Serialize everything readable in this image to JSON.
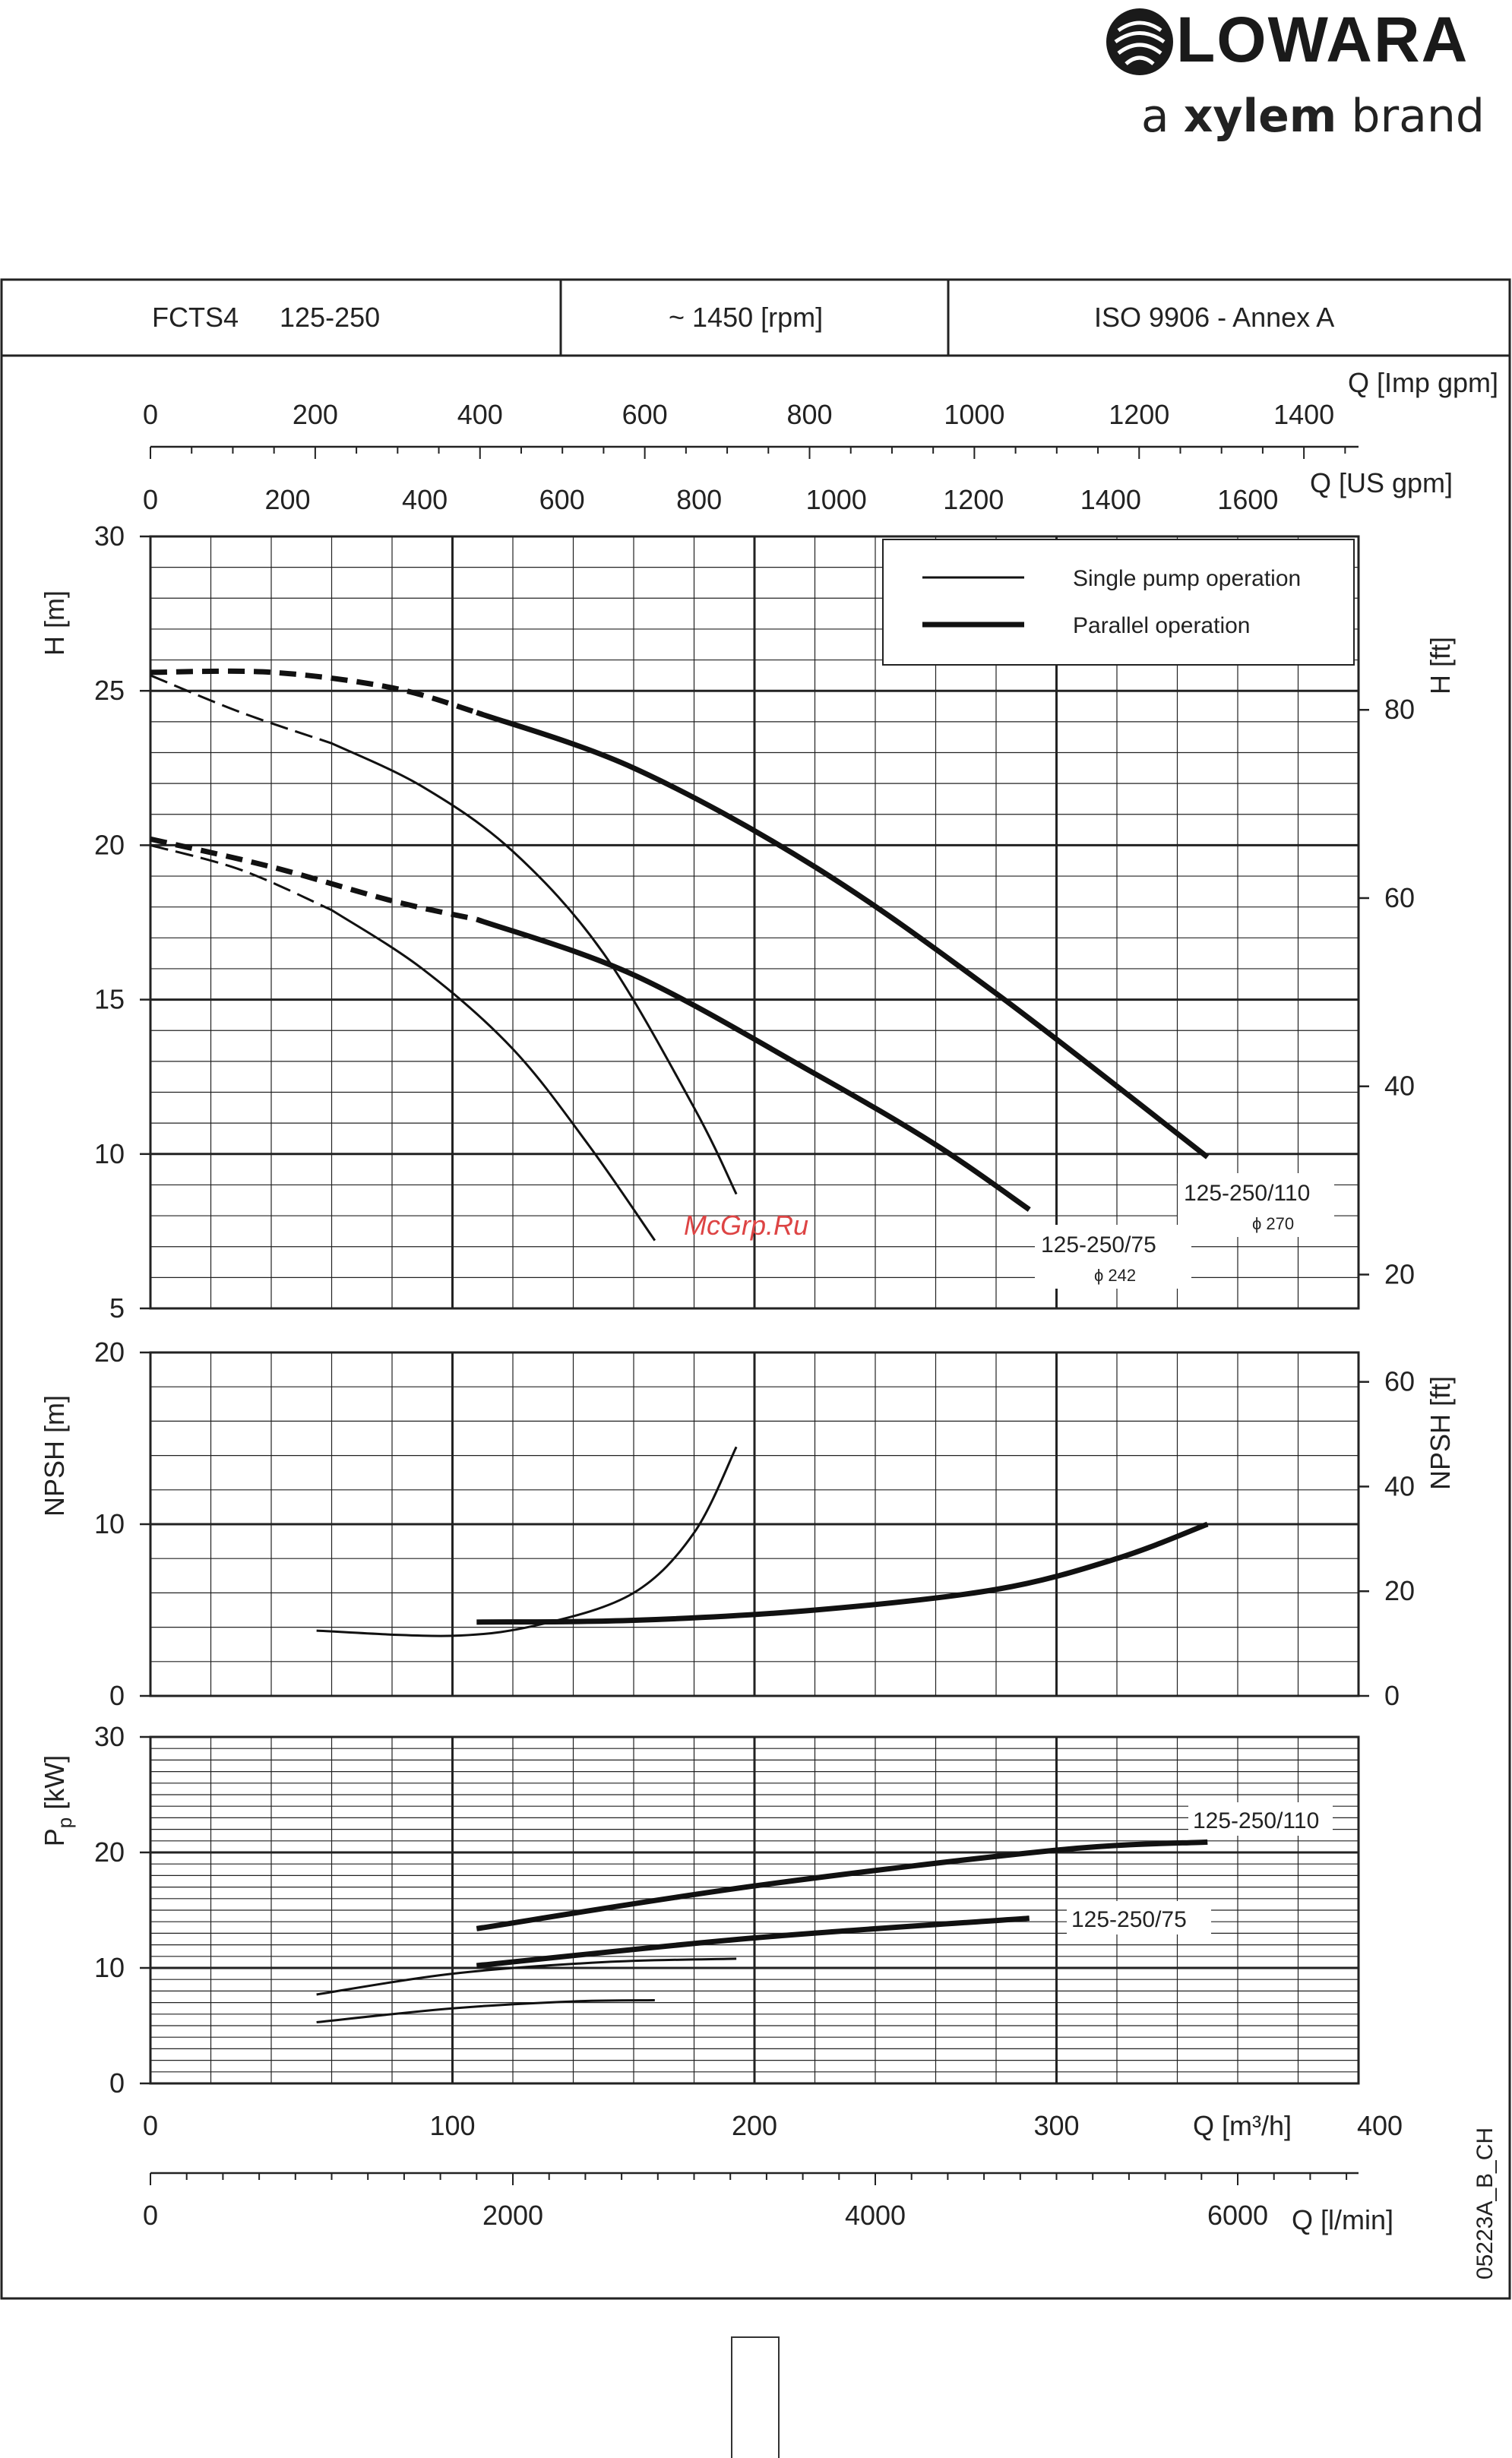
{
  "brand": {
    "name": "LOWARA",
    "tagline_prefix": "a ",
    "tagline_bold": "xylem",
    "tagline_suffix": " brand",
    "logo_icon": "lowara-swirl-logo"
  },
  "header": {
    "model": "FCTS4",
    "size": "125-250",
    "speed": "~ 1450 [rpm]",
    "standard": "ISO 9906 - Annex A"
  },
  "watermark": "McGrp.Ru",
  "drawing_code": "05223A_B_CH",
  "chart_data": {
    "type": "line",
    "scales": {
      "imp_gpm": {
        "label": "Q [Imp gpm]",
        "ticks": [
          0,
          200,
          400,
          600,
          800,
          1000,
          1200,
          1400
        ]
      },
      "us_gpm": {
        "label": "Q [US gpm]",
        "ticks": [
          0,
          200,
          400,
          600,
          800,
          1000,
          1200,
          1400,
          1600
        ]
      },
      "q_m3h": {
        "label": "Q [m³/h]",
        "ticks": [
          0,
          100,
          200,
          300,
          400
        ]
      },
      "q_lmin": {
        "label": "Q [l/min]",
        "ticks": [
          0,
          2000,
          4000,
          6000
        ]
      }
    },
    "legend": {
      "position": "top-right",
      "entries": [
        {
          "label": "Single pump operation",
          "style": "thin"
        },
        {
          "label": "Parallel operation",
          "style": "thick"
        }
      ]
    },
    "head": {
      "ylabel_left": "H [m]",
      "ylabel_right": "H [ft]",
      "ylim": [
        5,
        30
      ],
      "yticks": [
        5,
        10,
        15,
        20,
        25,
        30
      ],
      "right_ticks": [
        20,
        40,
        60,
        80
      ],
      "xlim": [
        0,
        400
      ],
      "curve_labels": [
        {
          "name": "125-250/110",
          "diameter": "ϕ 270"
        },
        {
          "name": "125-250/75",
          "diameter": "ϕ 242"
        }
      ],
      "series": [
        {
          "id": "single-110",
          "style": "thin",
          "x": [
            0,
            30,
            60,
            90,
            120,
            150,
            180,
            194
          ],
          "y": [
            25.5,
            24.3,
            23.3,
            21.9,
            19.8,
            16.5,
            11.5,
            8.7
          ]
        },
        {
          "id": "single-75",
          "style": "thin",
          "x": [
            0,
            30,
            60,
            90,
            120,
            145,
            167
          ],
          "y": [
            20.0,
            19.2,
            17.9,
            16.0,
            13.4,
            10.3,
            7.2
          ]
        },
        {
          "id": "parallel-110",
          "style": "thick",
          "x": [
            0,
            40,
            80,
            108,
            160,
            220,
            280,
            350
          ],
          "y": [
            25.6,
            25.6,
            25.1,
            24.3,
            22.5,
            19.3,
            15.2,
            9.9
          ]
        },
        {
          "id": "parallel-75",
          "style": "thick",
          "x": [
            0,
            40,
            80,
            108,
            160,
            220,
            260,
            291
          ],
          "y": [
            20.2,
            19.3,
            18.2,
            17.6,
            15.8,
            12.6,
            10.3,
            8.2
          ]
        }
      ]
    },
    "npsh": {
      "ylabel_left": "NPSH [m]",
      "ylabel_right": "NPSH [ft]",
      "ylim": [
        0,
        20
      ],
      "yticks": [
        0,
        10,
        20
      ],
      "right_ticks": [
        0,
        20,
        40,
        60
      ],
      "series": [
        {
          "id": "npsh-single",
          "style": "thin",
          "x": [
            55,
            100,
            130,
            160,
            180,
            194
          ],
          "y": [
            3.8,
            3.5,
            4.2,
            6.0,
            9.5,
            14.5
          ]
        },
        {
          "id": "npsh-parallel",
          "style": "thick",
          "x": [
            108,
            160,
            220,
            280,
            320,
            350
          ],
          "y": [
            4.3,
            4.4,
            5.0,
            6.2,
            8.0,
            10.0
          ]
        }
      ]
    },
    "power": {
      "ylabel_left": "P",
      "ylabel_sub": "p",
      "ylabel_unit": " [kW]",
      "ylim": [
        0,
        30
      ],
      "yticks": [
        0,
        10,
        20,
        30
      ],
      "curve_labels": [
        "125-250/110",
        "125-250/75"
      ],
      "series": [
        {
          "id": "power-single-110",
          "style": "thin",
          "x": [
            55,
            100,
            150,
            194
          ],
          "y": [
            7.7,
            9.5,
            10.5,
            10.8
          ]
        },
        {
          "id": "power-single-75",
          "style": "thin",
          "x": [
            55,
            100,
            140,
            167
          ],
          "y": [
            5.3,
            6.5,
            7.1,
            7.2
          ]
        },
        {
          "id": "power-parallel-110",
          "style": "thick",
          "x": [
            108,
            200,
            300,
            350
          ],
          "y": [
            13.4,
            17.1,
            20.2,
            20.9
          ]
        },
        {
          "id": "power-parallel-75",
          "style": "thick",
          "x": [
            108,
            200,
            291
          ],
          "y": [
            10.2,
            12.6,
            14.3
          ]
        }
      ]
    }
  }
}
